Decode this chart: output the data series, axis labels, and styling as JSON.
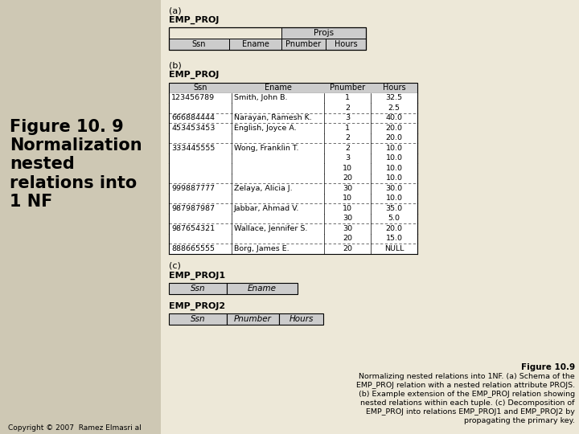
{
  "bg_color": "#ede8d8",
  "white": "#ffffff",
  "light_gray": "#cccccc",
  "text_color": "#000000",
  "left_panel_color": "#c8c0a8",
  "left_text": "Figure 10. 9\nNormalization\nnested\nrelations into\n1 NF",
  "copyright_text": "Copyright © 2007  Ramez Elmasri al",
  "section_a_label": "(a)",
  "section_a_table_name": "EMP_PROJ",
  "section_a_header_merged": "Projs",
  "section_a_cols": [
    "Ssn",
    "Ename",
    "Pnumber",
    "Hours"
  ],
  "section_b_label": "(b)",
  "section_b_table_name": "EMP_PROJ",
  "section_b_cols": [
    "Ssn",
    "Ename",
    "Pnumber",
    "Hours"
  ],
  "section_b_rows": [
    [
      "123456789",
      "Smith, John B.",
      "1",
      "32.5"
    ],
    [
      "",
      "",
      "2",
      "2.5"
    ],
    [
      "666884444",
      "Narayan, Ramesh K.",
      "3",
      "40.0"
    ],
    [
      "453453453",
      "English, Joyce A.",
      "1",
      "20.0"
    ],
    [
      "",
      "",
      "2",
      "20.0"
    ],
    [
      "333445555",
      "Wong, Franklin T.",
      "2",
      "10.0"
    ],
    [
      "",
      "",
      "3",
      "10.0"
    ],
    [
      "",
      "",
      "10",
      "10.0"
    ],
    [
      "",
      "",
      "20",
      "10.0"
    ],
    [
      "999887777",
      "Zelaya, Alicia J.",
      "30",
      "30.0"
    ],
    [
      "",
      "",
      "10",
      "10.0"
    ],
    [
      "987987987",
      "Jabbar, Ahmad V.",
      "10",
      "35.0"
    ],
    [
      "",
      "",
      "30",
      "5.0"
    ],
    [
      "987654321",
      "Wallace, Jennifer S.",
      "30",
      "20.0"
    ],
    [
      "",
      "",
      "20",
      "15.0"
    ],
    [
      "888665555",
      "Borg, James E.",
      "20",
      "NULL"
    ]
  ],
  "section_b_group_ends": [
    1,
    2,
    4,
    8,
    10,
    12,
    14
  ],
  "section_c_label": "(c)",
  "section_c1_name": "EMP_PROJ1",
  "section_c1_cols": [
    "Ssn",
    "Ename"
  ],
  "section_c2_name": "EMP_PROJ2",
  "section_c2_cols": [
    "Ssn",
    "Pnumber",
    "Hours"
  ],
  "caption_title": "Figure 10.9",
  "caption_lines": [
    "Normalizing nested relations into 1NF. (a) Schema of the",
    "EMP_PROJ relation with a nested relation attribute PROJS.",
    "(b) Example extension of the EMP_PROJ relation showing",
    "nested relations within each tuple. (c) Decomposition of",
    "EMP_PROJ into relations EMP_PROJ1 and EMP_PROJ2 by",
    "propagating the primary key."
  ]
}
